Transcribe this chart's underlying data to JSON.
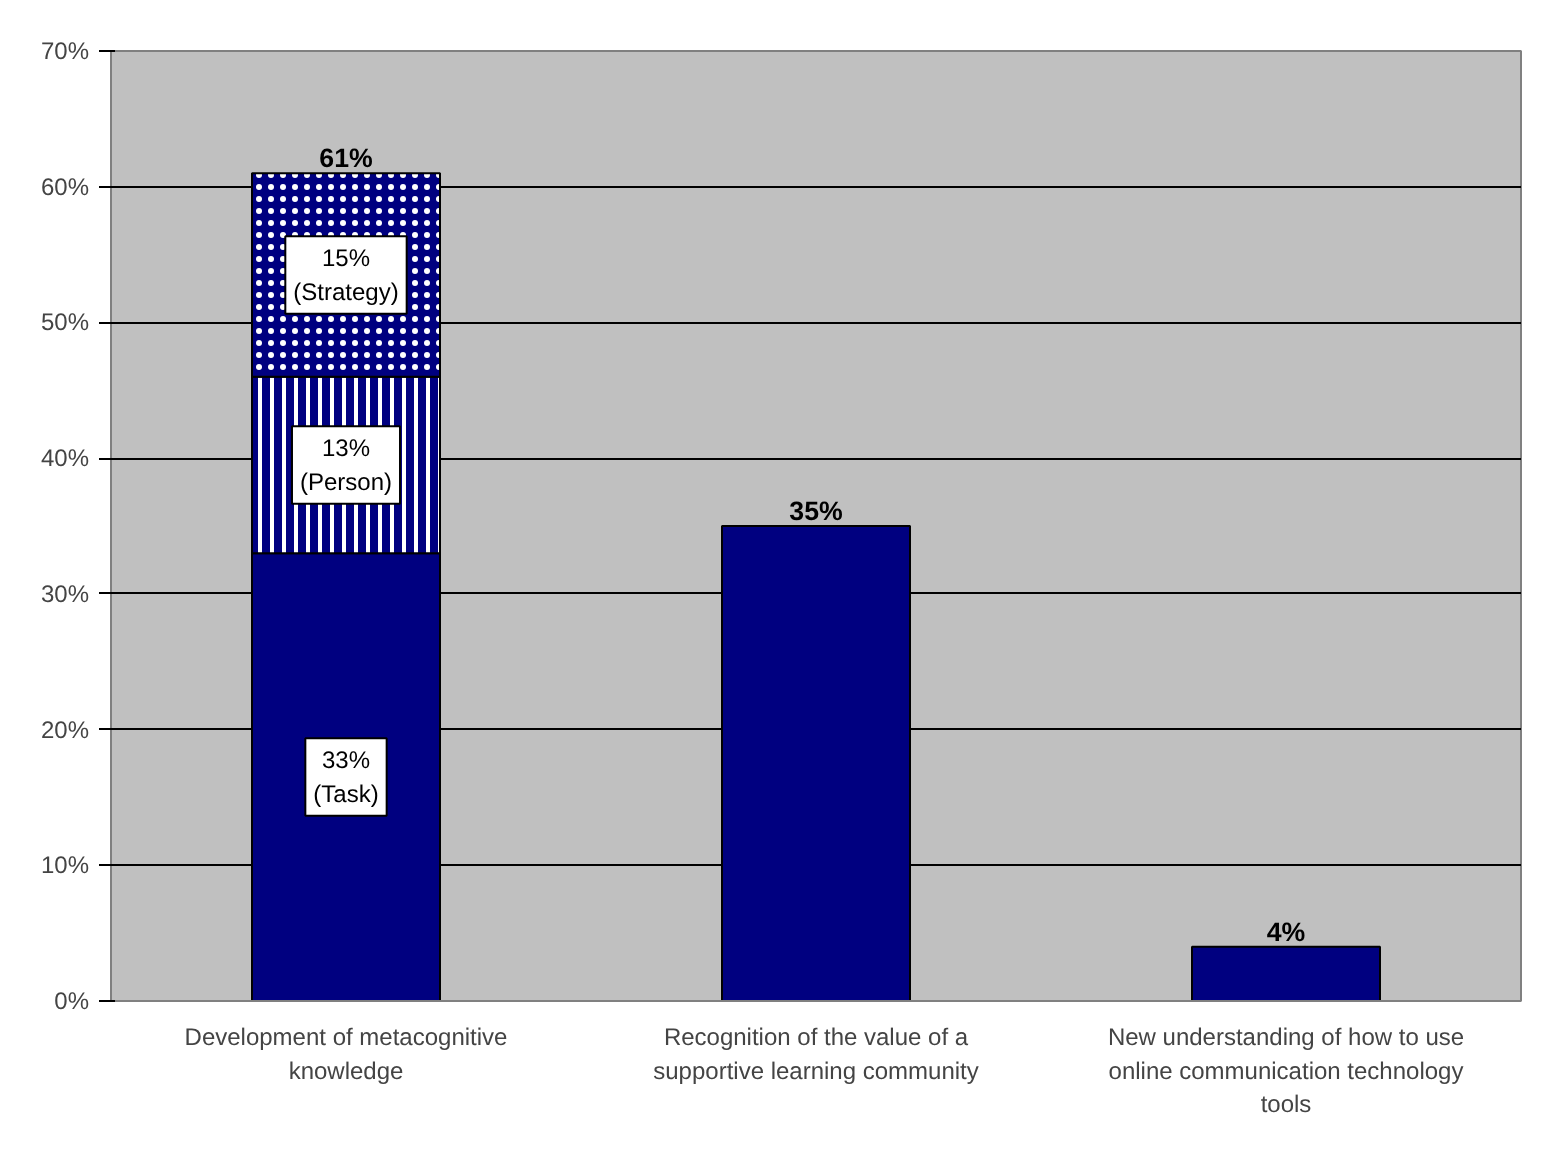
{
  "chart_data": {
    "type": "bar",
    "stacked": true,
    "categories": [
      "Development of metacognitive knowledge",
      "Recognition of the value of a supportive learning community",
      "New understanding of how to use online communication technology tools"
    ],
    "series": [
      {
        "color": "#000080",
        "values": [
          33,
          35,
          4
        ],
        "value_labels": [
          "33%\n(Task)",
          null,
          null
        ]
      },
      {
        "color": "#000080",
        "values": [
          13,
          null,
          null
        ],
        "value_labels": [
          "13%\n(Person)",
          null,
          null
        ]
      },
      {
        "color": "#000080",
        "values": [
          15,
          null,
          null
        ],
        "value_labels": [
          "15%\n(Strategy)",
          null,
          null
        ]
      }
    ],
    "totals": [
      "61%",
      "35%",
      "4%"
    ],
    "ylim": [
      0,
      70
    ],
    "yticks": [
      {
        "value": 0,
        "label": "0%"
      },
      {
        "value": 10,
        "label": "10%"
      },
      {
        "value": 20,
        "label": "20%"
      },
      {
        "value": 30,
        "label": "30%"
      },
      {
        "value": 40,
        "label": "40%"
      },
      {
        "value": 50,
        "label": "50%"
      },
      {
        "value": 60,
        "label": "60%"
      },
      {
        "value": 70,
        "label": "70%"
      }
    ],
    "grid": "y"
  }
}
